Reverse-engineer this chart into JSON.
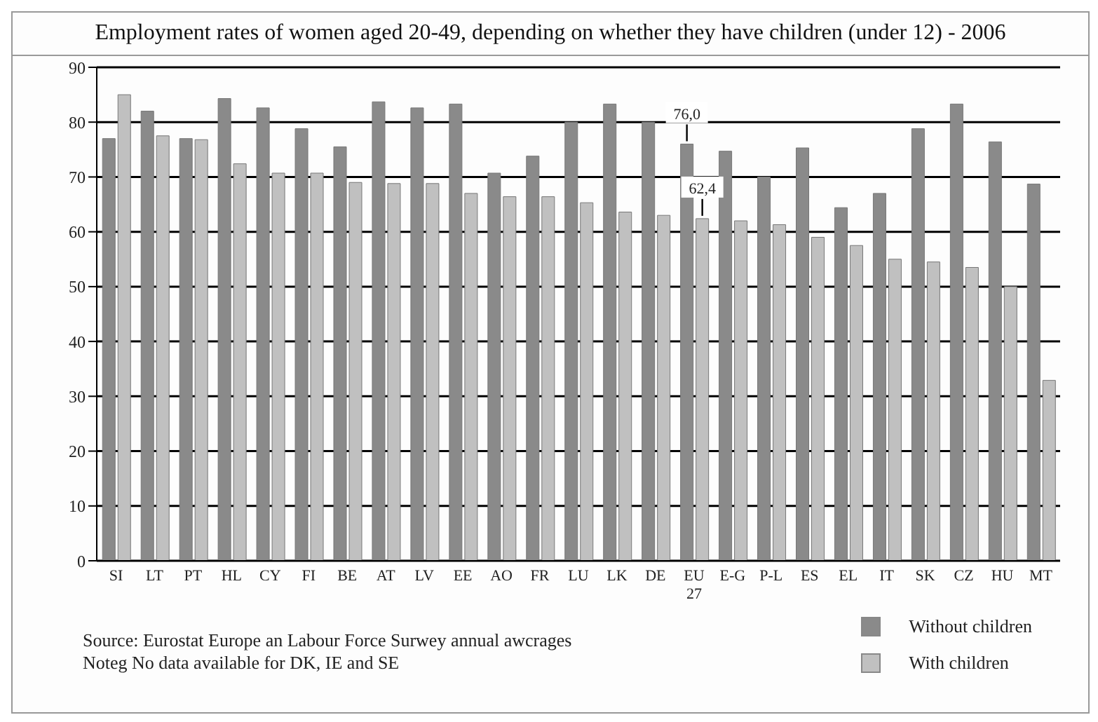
{
  "chart_data": {
    "type": "bar",
    "title": "Employment rates of women aged 20-49, depending on whether they have children (under 12) - 2006",
    "categories": [
      "SI",
      "LT",
      "PT",
      "HL",
      "CY",
      "FI",
      "BE",
      "AT",
      "LV",
      "EE",
      "AO",
      "FR",
      "LU",
      "LK",
      "DE",
      "EU 27",
      "E-G",
      "P-L",
      "ES",
      "EL",
      "IT",
      "SK",
      "CZ",
      "HU",
      "MT"
    ],
    "series": [
      {
        "name": "Without children",
        "color": "#8a8a8a",
        "values": [
          77,
          82,
          77,
          84.3,
          82.6,
          78.8,
          75.5,
          83.7,
          82.6,
          83.3,
          70.7,
          73.8,
          80,
          83.3,
          80,
          76.0,
          74.7,
          70,
          75.3,
          64.4,
          67,
          78.8,
          83.3,
          76.4,
          68.7
        ],
        "value_labels": [
          null,
          null,
          null,
          null,
          null,
          null,
          null,
          null,
          null,
          null,
          null,
          null,
          null,
          null,
          null,
          "76,0",
          null,
          null,
          null,
          null,
          null,
          null,
          null,
          null,
          null
        ]
      },
      {
        "name": "With children",
        "color": "#c0c0c0",
        "values": [
          85,
          77.5,
          76.8,
          72.4,
          70.7,
          70.7,
          69,
          68.8,
          68.8,
          67,
          66.4,
          66.4,
          65.3,
          63.6,
          63,
          62.4,
          62,
          61.3,
          59,
          57.5,
          55,
          54.5,
          53.5,
          50,
          32.9
        ],
        "value_labels": [
          null,
          null,
          null,
          null,
          null,
          null,
          null,
          null,
          null,
          null,
          null,
          null,
          null,
          null,
          null,
          "62,4",
          null,
          null,
          null,
          null,
          null,
          null,
          null,
          null,
          null
        ]
      }
    ],
    "ylim": [
      0,
      90
    ],
    "yticks": [
      0,
      10,
      20,
      30,
      40,
      50,
      60,
      70,
      80,
      90
    ],
    "grid": "y",
    "legend": "bottom right",
    "annotations": [
      "Source: Eurostat Europe an Labour Force Surwey annual awcrages",
      "Noteg No data available for DK, IE and SE"
    ]
  }
}
